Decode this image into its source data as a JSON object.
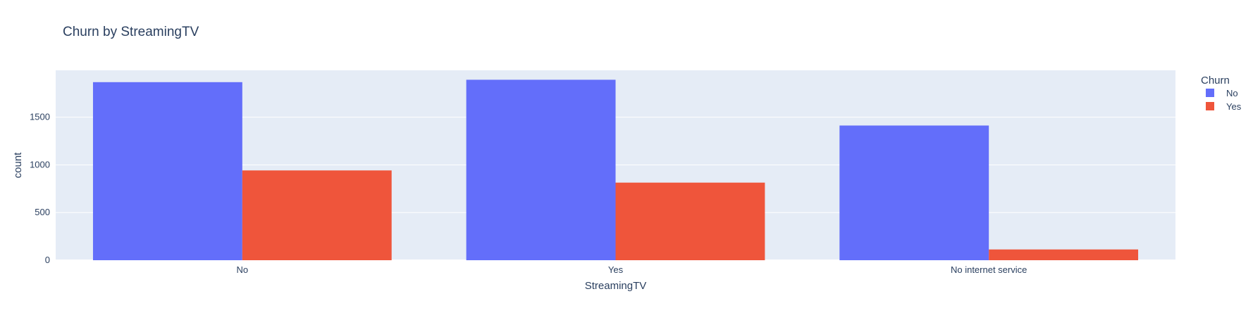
{
  "chart_data": {
    "type": "bar",
    "title": "Churn by StreamingTV",
    "xlabel": "StreamingTV",
    "ylabel": "count",
    "categories": [
      "No",
      "Yes",
      "No internet service"
    ],
    "series": [
      {
        "name": "No",
        "color": "#636efa",
        "values": [
          1868,
          1893,
          1413
        ]
      },
      {
        "name": "Yes",
        "color": "#ef553b",
        "values": [
          942,
          814,
          113
        ]
      }
    ],
    "ylim": [
      0,
      1992
    ],
    "yticks": [
      0,
      500,
      1000,
      1500
    ],
    "grid": true,
    "legend": {
      "title": "Churn",
      "placement": "top-right"
    }
  }
}
